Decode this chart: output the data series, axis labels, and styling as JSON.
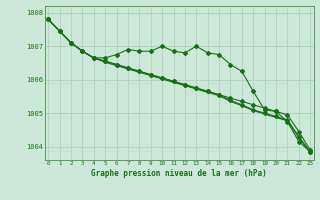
{
  "title": "Graphe pression niveau de la mer (hPa)",
  "background_color": "#cce8d8",
  "grid_color": "#aacfb8",
  "line_color": "#1a6e1a",
  "x_labels": [
    "0",
    "1",
    "2",
    "3",
    "4",
    "5",
    "6",
    "7",
    "8",
    "9",
    "10",
    "11",
    "12",
    "13",
    "14",
    "15",
    "16",
    "17",
    "18",
    "19",
    "20",
    "21",
    "22",
    "23"
  ],
  "ylim": [
    1003.6,
    1008.2
  ],
  "yticks": [
    1004,
    1005,
    1006,
    1007,
    1008
  ],
  "series1": [
    1007.8,
    1007.45,
    1007.1,
    1006.85,
    1006.65,
    1006.65,
    1006.75,
    1006.9,
    1006.85,
    1006.85,
    1007.0,
    1006.85,
    1006.8,
    1007.0,
    1006.8,
    1006.75,
    1006.45,
    1006.25,
    1005.65,
    1005.1,
    1005.05,
    1004.75,
    1004.15,
    1003.85
  ],
  "series2": [
    1007.8,
    1007.45,
    1007.1,
    1006.85,
    1006.65,
    1006.55,
    1006.45,
    1006.35,
    1006.25,
    1006.15,
    1006.05,
    1005.95,
    1005.85,
    1005.75,
    1005.65,
    1005.55,
    1005.45,
    1005.35,
    1005.25,
    1005.15,
    1005.05,
    1004.95,
    1004.45,
    1003.9
  ],
  "series3": [
    1007.8,
    1007.45,
    1007.1,
    1006.85,
    1006.65,
    1006.55,
    1006.45,
    1006.35,
    1006.25,
    1006.15,
    1006.05,
    1005.95,
    1005.85,
    1005.75,
    1005.65,
    1005.55,
    1005.38,
    1005.25,
    1005.1,
    1005.0,
    1004.9,
    1004.8,
    1004.3,
    1003.85
  ],
  "series4": [
    1007.8,
    1007.45,
    1007.1,
    1006.85,
    1006.65,
    1006.52,
    1006.42,
    1006.32,
    1006.22,
    1006.12,
    1006.02,
    1005.92,
    1005.82,
    1005.72,
    1005.62,
    1005.52,
    1005.35,
    1005.22,
    1005.08,
    1004.97,
    1004.87,
    1004.77,
    1004.27,
    1003.82
  ]
}
